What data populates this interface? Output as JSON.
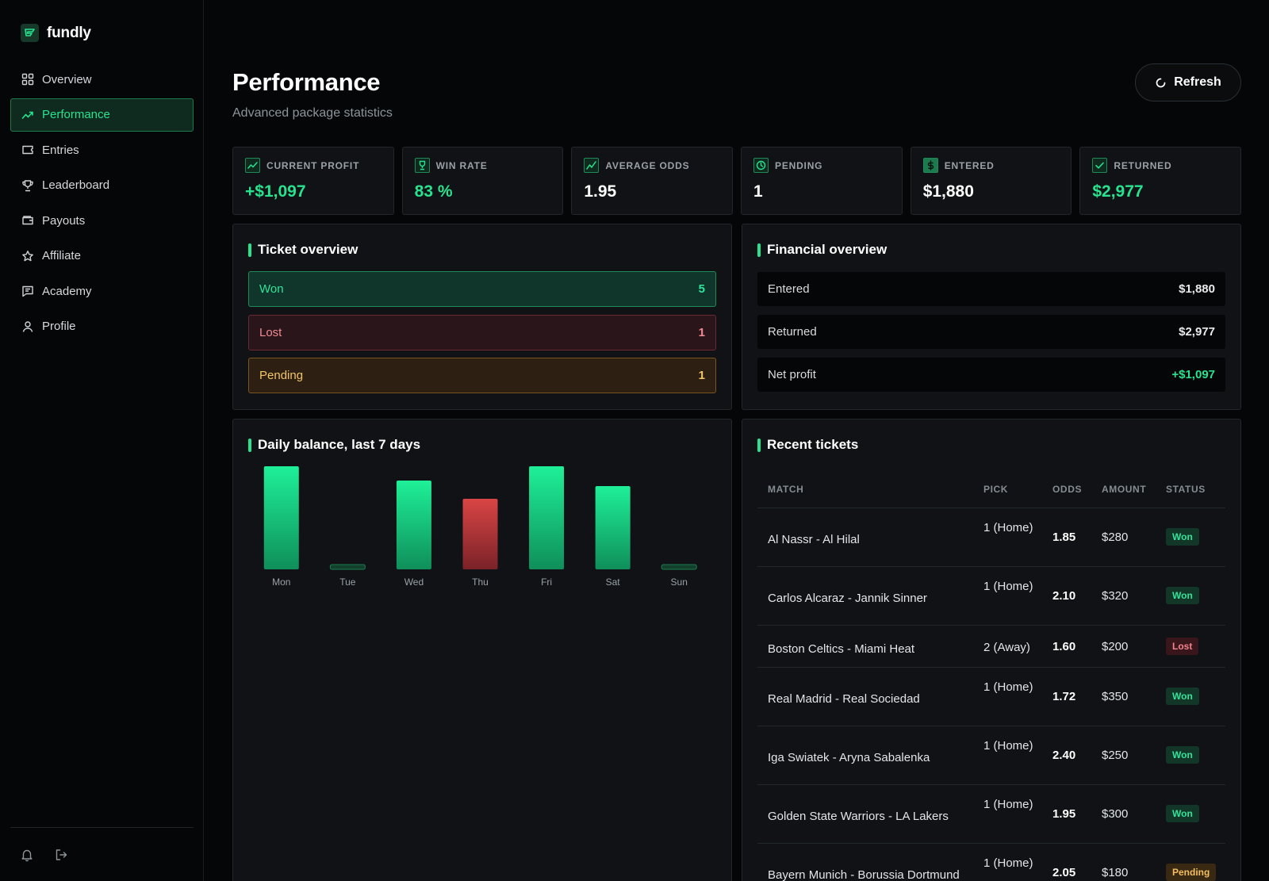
{
  "brand": {
    "name": "fundly"
  },
  "sidebar": {
    "items": [
      {
        "label": "Overview",
        "icon": "grid-icon",
        "active": false
      },
      {
        "label": "Performance",
        "icon": "trend-icon",
        "active": true
      },
      {
        "label": "Entries",
        "icon": "ticket-icon",
        "active": false
      },
      {
        "label": "Leaderboard",
        "icon": "trophy-icon",
        "active": false
      },
      {
        "label": "Payouts",
        "icon": "wallet-icon",
        "active": false
      },
      {
        "label": "Affiliate",
        "icon": "star-icon",
        "active": false
      },
      {
        "label": "Academy",
        "icon": "book-icon",
        "active": false
      },
      {
        "label": "Profile",
        "icon": "user-icon",
        "active": false
      }
    ]
  },
  "header": {
    "title": "Performance",
    "subtitle": "Advanced package statistics",
    "refresh_label": "Refresh"
  },
  "stats": [
    {
      "label": "CURRENT PROFIT",
      "value": "+$1,097",
      "icon": "trend-icon",
      "accent": true
    },
    {
      "label": "WIN RATE",
      "value": "83 %",
      "icon": "trophy-icon",
      "accent": true
    },
    {
      "label": "AVERAGE ODDS",
      "value": "1.95",
      "icon": "trend-icon",
      "accent": false
    },
    {
      "label": "PENDING",
      "value": "1",
      "icon": "clock-icon",
      "accent": false
    },
    {
      "label": "ENTERED",
      "value": "$1,880",
      "icon": "dollar-icon",
      "accent": false
    },
    {
      "label": "RETURNED",
      "value": "$2,977",
      "icon": "check-icon",
      "accent": true
    }
  ],
  "ticket_overview": {
    "title": "Ticket overview",
    "rows": [
      {
        "label": "Won",
        "count": "5"
      },
      {
        "label": "Lost",
        "count": "1"
      },
      {
        "label": "Pending",
        "count": "1"
      }
    ]
  },
  "financial_overview": {
    "title": "Financial overview",
    "rows": [
      {
        "label": "Entered",
        "amount": "$1,880"
      },
      {
        "label": "Returned",
        "amount": "$2,977"
      },
      {
        "label": "Net profit",
        "amount": "+$1,097"
      }
    ]
  },
  "daily_balance": {
    "title": "Daily balance, last 7 days"
  },
  "chart_data": {
    "type": "bar",
    "title": "Daily balance, last 7 days",
    "categories": [
      "Mon",
      "Tue",
      "Wed",
      "Thu",
      "Fri",
      "Sat",
      "Sun"
    ],
    "values": [
      130,
      0,
      112,
      -89,
      130,
      105,
      0
    ],
    "colors": {
      "positive": "#1ee68f",
      "negative": "#d14545",
      "zero": "#1d7a4f"
    },
    "xlabel": "",
    "ylabel": "",
    "grid": false
  },
  "recent_tickets": {
    "title": "Recent tickets",
    "columns": [
      "MATCH",
      "PICK",
      "ODDS",
      "AMOUNT",
      "STATUS"
    ],
    "rows": [
      {
        "match": "Al Nassr - Al Hilal",
        "pick": "1 (Home)",
        "odds": "1.85",
        "amount": "$280",
        "status": "Won"
      },
      {
        "match": "Carlos Alcaraz - Jannik Sinner",
        "pick": "1 (Home)",
        "odds": "2.10",
        "amount": "$320",
        "status": "Won"
      },
      {
        "match": "Boston Celtics - Miami Heat",
        "pick": "2 (Away)",
        "odds": "1.60",
        "amount": "$200",
        "status": "Lost"
      },
      {
        "match": "Real Madrid - Real Sociedad",
        "pick": "1 (Home)",
        "odds": "1.72",
        "amount": "$350",
        "status": "Won"
      },
      {
        "match": "Iga Swiatek - Aryna Sabalenka",
        "pick": "1 (Home)",
        "odds": "2.40",
        "amount": "$250",
        "status": "Won"
      },
      {
        "match": "Golden State Warriors - LA Lakers",
        "pick": "1 (Home)",
        "odds": "1.95",
        "amount": "$300",
        "status": "Won"
      },
      {
        "match": "Bayern Munich - Borussia Dortmund",
        "pick": "1 (Home)",
        "odds": "2.05",
        "amount": "$180",
        "status": "Pending"
      }
    ]
  },
  "colors": {
    "accent": "#27e38f",
    "background": "#050607",
    "panel": "#101215"
  }
}
